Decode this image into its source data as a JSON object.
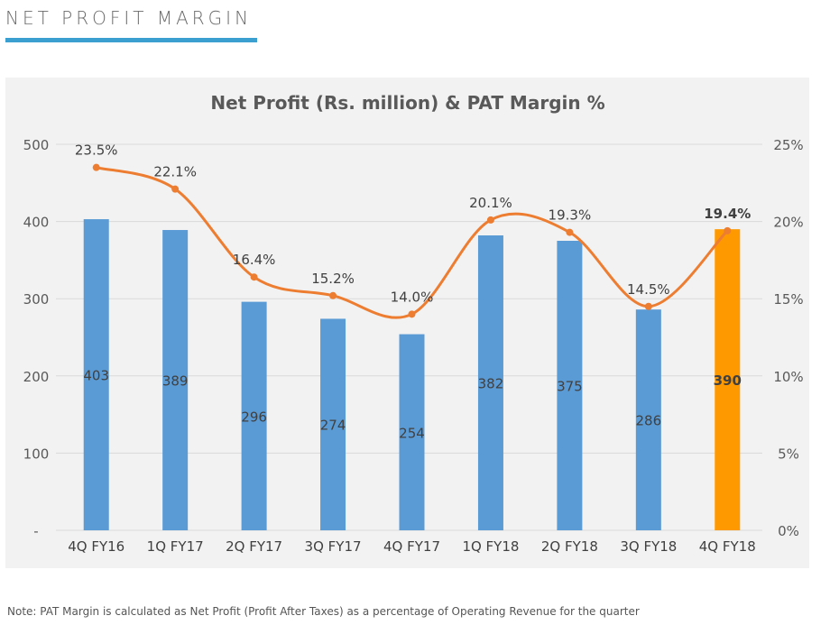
{
  "header": {
    "title": "NET PROFIT MARGIN"
  },
  "note": "Note: PAT Margin is calculated as Net Profit (Profit After Taxes) as a percentage of Operating Revenue for the quarter",
  "chart_data": {
    "type": "bar+line",
    "title": "Net Profit (Rs. million) & PAT Margin %",
    "categories": [
      "4Q FY16",
      "1Q FY17",
      "2Q FY17",
      "3Q FY17",
      "4Q FY17",
      "1Q FY18",
      "2Q FY18",
      "3Q FY18",
      "4Q FY18"
    ],
    "bars": {
      "values": [
        403,
        389,
        296,
        274,
        254,
        382,
        375,
        286,
        390
      ],
      "labels": [
        "403",
        "389",
        "296",
        "274",
        "254",
        "382",
        "375",
        "286",
        "390"
      ],
      "color": "#5b9bd5",
      "highlight_color": "#ff9900",
      "highlight_index": 8
    },
    "line": {
      "values": [
        23.5,
        22.1,
        16.4,
        15.2,
        14.0,
        20.1,
        19.3,
        14.5,
        19.4
      ],
      "labels": [
        "23.5%",
        "22.1%",
        "16.4%",
        "15.2%",
        "14.0%",
        "20.1%",
        "19.3%",
        "14.5%",
        "19.4%"
      ],
      "color": "#ed7d31",
      "smoothed": true
    },
    "y_left": {
      "range": [
        0,
        500
      ],
      "ticks": [
        "-",
        "100",
        "200",
        "300",
        "400",
        "500"
      ]
    },
    "y_right": {
      "range": [
        0,
        25
      ],
      "ticks": [
        "0%",
        "5%",
        "10%",
        "15%",
        "20%",
        "25%"
      ]
    },
    "grid": true
  }
}
